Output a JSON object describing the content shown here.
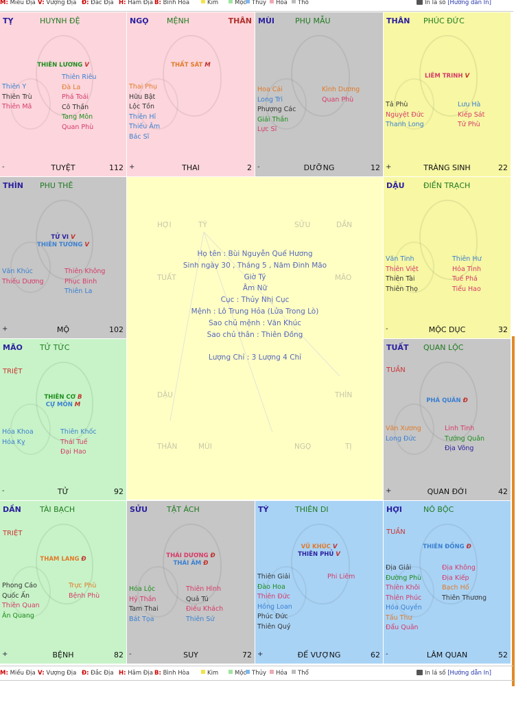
{
  "legend": {
    "items": [
      {
        "key": "M:",
        "label": "Miếu Địa"
      },
      {
        "key": "V:",
        "label": "Vượng Địa"
      },
      {
        "key": "Đ:",
        "label": "Đắc Địa"
      },
      {
        "key": "H:",
        "label": "Hãm Địa"
      },
      {
        "key": "B:",
        "label": "Bình Hòa"
      }
    ],
    "elements": [
      {
        "label": "Kim",
        "color": "#f4e34a"
      },
      {
        "label": "Mộc",
        "color": "#9fe59f"
      },
      {
        "label": "Thủy",
        "color": "#7fb7ea"
      },
      {
        "label": "Hỏa",
        "color": "#f0a9b4"
      },
      {
        "label": "Thổ",
        "color": "#bcbcbc"
      }
    ],
    "print_text": "In lá số",
    "guide_link": "[Hướng dẫn In]"
  },
  "palaces": [
    {
      "id": "ty",
      "branch": "TỴ",
      "palace": "HUYNH ĐỆ",
      "than": "",
      "bg": "#fcd6dc",
      "main": [
        {
          "name": "THIÊN LƯƠNG",
          "q": "V",
          "color": "#1c8c1c"
        }
      ],
      "left": [
        {
          "t": "Thiên Y",
          "c": "#3a7fd0"
        },
        {
          "t": "Thiên Trù",
          "c": "#333333"
        },
        {
          "t": "Thiên Mã",
          "c": "#d63a68"
        }
      ],
      "right": [
        {
          "t": "Thiên Riêu",
          "c": "#3a7fd0"
        },
        {
          "t": "Đà La",
          "c": "#e07a2a"
        },
        {
          "t": "Phá Toái",
          "c": "#d63a68"
        },
        {
          "t": "Cô Thần",
          "c": "#333333"
        },
        {
          "t": "Tang Môn",
          "c": "#1c8c1c"
        },
        {
          "t": "Quan Phù",
          "c": "#d63a68"
        }
      ],
      "tuan": "",
      "sign": "-",
      "stage": "TUYỆT",
      "age": "112"
    },
    {
      "id": "ngo",
      "branch": "NGỌ",
      "palace": "MỆNH",
      "than": "THÂN",
      "bg": "#fcd6dc",
      "main": [
        {
          "name": "THẤT SÁT",
          "q": "M",
          "color": "#e07a2a"
        }
      ],
      "left": [
        {
          "t": "Thai Phụ",
          "c": "#e07a2a"
        },
        {
          "t": "Hữu Bật",
          "c": "#333333"
        },
        {
          "t": "Lộc Tồn",
          "c": "#333333"
        },
        {
          "t": "Thiên Hỉ",
          "c": "#3a7fd0"
        },
        {
          "t": "Thiếu Âm",
          "c": "#3a7fd0"
        },
        {
          "t": "Bác Sĩ",
          "c": "#3a7fd0"
        }
      ],
      "right": [],
      "tuan": "",
      "sign": "+",
      "stage": "THAI",
      "age": "2"
    },
    {
      "id": "mui",
      "branch": "MÙI",
      "palace": "PHỤ MẪU",
      "than": "",
      "bg": "#c6c6c6",
      "main": [],
      "left": [
        {
          "t": "Hoa Cái",
          "c": "#e07a2a"
        },
        {
          "t": "Long Trì",
          "c": "#3a7fd0"
        },
        {
          "t": "Phượng Các",
          "c": "#333333"
        },
        {
          "t": "Giải Thần",
          "c": "#1c8c1c"
        },
        {
          "t": "Lực Sĩ",
          "c": "#d63a68"
        }
      ],
      "right": [
        {
          "t": "Kình Dương",
          "c": "#e07a2a"
        },
        {
          "t": "Quan Phù",
          "c": "#d63a68"
        }
      ],
      "tuan": "",
      "sign": "-",
      "stage": "DƯỠNG",
      "age": "12"
    },
    {
      "id": "than",
      "branch": "THÂN",
      "palace": "PHÚC ĐỨC",
      "than": "",
      "bg": "#f7f7a4",
      "main": [
        {
          "name": "LIÊM TRINH",
          "q": "V",
          "color": "#d63a68"
        }
      ],
      "left": [
        {
          "t": "Tả Phù",
          "c": "#333333"
        },
        {
          "t": "Nguyệt Đức",
          "c": "#d63a68"
        },
        {
          "t": "Thanh Long",
          "c": "#3a7fd0"
        }
      ],
      "right": [
        {
          "t": "Lưu Hà",
          "c": "#3a7fd0"
        },
        {
          "t": "Kiếp Sát",
          "c": "#d63a68"
        },
        {
          "t": "Tử Phù",
          "c": "#d63a68"
        }
      ],
      "tuan": "",
      "sign": "+",
      "stage": "TRÀNG SINH",
      "age": "22"
    },
    {
      "id": "thin",
      "branch": "THÌN",
      "palace": "PHU THÊ",
      "than": "",
      "bg": "#c6c6c6",
      "main": [
        {
          "name": "TỬ VI",
          "q": "V",
          "color": "#2a1f9e"
        },
        {
          "name": "THIÊN TƯỚNG",
          "q": "V",
          "color": "#3a7fd0"
        }
      ],
      "left": [
        {
          "t": "Văn Khúc",
          "c": "#3a7fd0"
        },
        {
          "t": "Thiếu Dương",
          "c": "#d63a68"
        }
      ],
      "right": [
        {
          "t": "Thiên Không",
          "c": "#d63a68"
        },
        {
          "t": "Phục Binh",
          "c": "#d63a68"
        },
        {
          "t": "Thiên La",
          "c": "#3a7fd0"
        }
      ],
      "tuan": "",
      "sign": "+",
      "stage": "MỘ",
      "age": "102"
    },
    {
      "id": "dau",
      "branch": "DẬU",
      "palace": "ĐIỀN TRẠCH",
      "than": "",
      "bg": "#f7f7a4",
      "main": [],
      "left": [
        {
          "t": "Văn Tinh",
          "c": "#3a7fd0"
        },
        {
          "t": "Thiên Việt",
          "c": "#d63a68"
        },
        {
          "t": "Thiên Tài",
          "c": "#333333"
        },
        {
          "t": "Thiên Thọ",
          "c": "#333333"
        }
      ],
      "right": [
        {
          "t": "Thiên Hư",
          "c": "#3a7fd0"
        },
        {
          "t": "Hỏa Tinh",
          "c": "#d63a68"
        },
        {
          "t": "Tuế Phá",
          "c": "#d63a68"
        },
        {
          "t": "Tiểu Hao",
          "c": "#d63a68"
        }
      ],
      "tuan": "",
      "sign": "-",
      "stage": "MỘC DỤC",
      "age": "32"
    },
    {
      "id": "mao",
      "branch": "MÃO",
      "palace": "TỬ TỨC",
      "than": "",
      "bg": "#c8f3c8",
      "main": [
        {
          "name": "THIÊN CƠ",
          "q": "B",
          "color": "#1c8c1c"
        },
        {
          "name": "CỰ MÔN",
          "q": "M",
          "color": "#3a7fd0"
        }
      ],
      "left": [
        {
          "t": "Hóa Khoa",
          "c": "#3a7fd0"
        },
        {
          "t": "Hóa Kỵ",
          "c": "#3a7fd0"
        }
      ],
      "right": [
        {
          "t": "Thiên Khốc",
          "c": "#3a7fd0"
        },
        {
          "t": "Thái Tuế",
          "c": "#d63a68"
        },
        {
          "t": "Đại Hao",
          "c": "#d63a68"
        }
      ],
      "tuan": "TRIỆT",
      "sign": "-",
      "stage": "TỬ",
      "age": "92"
    },
    {
      "id": "tuat",
      "branch": "TUẤT",
      "palace": "QUAN LỘC",
      "than": "",
      "bg": "#c6c6c6",
      "main": [
        {
          "name": "PHÁ QUÂN",
          "q": "Đ",
          "color": "#3a7fd0"
        }
      ],
      "left": [
        {
          "t": "Văn Xương",
          "c": "#e07a2a"
        },
        {
          "t": "Long Đức",
          "c": "#3a7fd0"
        }
      ],
      "right": [
        {
          "t": "Linh Tinh",
          "c": "#d63a68"
        },
        {
          "t": "Tướng Quân",
          "c": "#1c8c1c"
        },
        {
          "t": "Địa Võng",
          "c": "#2a1f9e"
        }
      ],
      "tuan": "TUẦN",
      "sign": "+",
      "stage": "QUAN ĐỚI",
      "age": "42"
    },
    {
      "id": "dan",
      "branch": "DẦN",
      "palace": "TÀI BẠCH",
      "than": "",
      "bg": "#c8f3c8",
      "main": [
        {
          "name": "THAM LANG",
          "q": "Đ",
          "color": "#e07a2a"
        }
      ],
      "left": [
        {
          "t": "Phong Cáo",
          "c": "#333333"
        },
        {
          "t": "Quốc Ấn",
          "c": "#333333"
        },
        {
          "t": "Thiên Quan",
          "c": "#d63a68"
        },
        {
          "t": "Ân Quang",
          "c": "#1c8c1c"
        }
      ],
      "right": [
        {
          "t": "Trực Phù",
          "c": "#e07a2a"
        },
        {
          "t": "Bệnh Phù",
          "c": "#d63a68"
        }
      ],
      "tuan": "TRIỆT",
      "sign": "+",
      "stage": "BỆNH",
      "age": "82"
    },
    {
      "id": "suu",
      "branch": "SỬU",
      "palace": "TẬT ÁCH",
      "than": "",
      "bg": "#c6c6c6",
      "main": [
        {
          "name": "THÁI DƯƠNG",
          "q": "Đ",
          "color": "#d63a68"
        },
        {
          "name": "THÁI ÂM",
          "q": "Đ",
          "color": "#3a7fd0"
        }
      ],
      "left": [
        {
          "t": "Hóa Lộc",
          "c": "#1c8c1c"
        },
        {
          "t": "Hỷ Thần",
          "c": "#d63a68"
        },
        {
          "t": "Tam Thai",
          "c": "#333333"
        },
        {
          "t": "Bát Tọa",
          "c": "#3a7fd0"
        }
      ],
      "right": [
        {
          "t": "Thiên Hình",
          "c": "#d63a68"
        },
        {
          "t": "Quả Tú",
          "c": "#333333"
        },
        {
          "t": "Điếu Khách",
          "c": "#d63a68"
        },
        {
          "t": "Thiên Sứ",
          "c": "#3a7fd0"
        }
      ],
      "tuan": "",
      "sign": "-",
      "stage": "SUY",
      "age": "72"
    },
    {
      "id": "ty2",
      "branch": "TÝ",
      "palace": "THIÊN DI",
      "than": "",
      "bg": "#a9d3f5",
      "main": [
        {
          "name": "VŨ KHÚC",
          "q": "V",
          "color": "#e07a2a"
        },
        {
          "name": "THIÊN PHỦ",
          "q": "V",
          "color": "#2a1f9e"
        }
      ],
      "left": [
        {
          "t": "Thiên Giải",
          "c": "#333333"
        },
        {
          "t": "Đào Hoa",
          "c": "#1c8c1c"
        },
        {
          "t": "Thiên Đức",
          "c": "#d63a68"
        },
        {
          "t": "Hồng Loan",
          "c": "#3a7fd0"
        },
        {
          "t": "Phúc Đức",
          "c": "#333333"
        },
        {
          "t": "Thiên Quý",
          "c": "#333333"
        }
      ],
      "right": [
        {
          "t": "Phi Liêm",
          "c": "#d63a68"
        }
      ],
      "tuan": "",
      "sign": "+",
      "stage": "ĐẾ VƯỢNG",
      "age": "62"
    },
    {
      "id": "hoi",
      "branch": "HỢI",
      "palace": "NÔ BỘC",
      "than": "",
      "bg": "#a9d3f5",
      "main": [
        {
          "name": "THIÊN ĐỒNG",
          "q": "Đ",
          "color": "#3a7fd0"
        }
      ],
      "left": [
        {
          "t": "Địa Giải",
          "c": "#333333"
        },
        {
          "t": "Đường Phù",
          "c": "#1c8c1c"
        },
        {
          "t": "Thiên Khôi",
          "c": "#d63a68"
        },
        {
          "t": "Thiên Phúc",
          "c": "#d63a68"
        },
        {
          "t": "Hóa Quyền",
          "c": "#3a7fd0"
        },
        {
          "t": "Tấu Thư",
          "c": "#e07a2a"
        },
        {
          "t": "Đẩu Quân",
          "c": "#d63a68"
        }
      ],
      "right": [
        {
          "t": "Địa Không",
          "c": "#d63a68"
        },
        {
          "t": "Địa Kiếp",
          "c": "#d63a68"
        },
        {
          "t": "Bạch Hổ",
          "c": "#e07a2a"
        },
        {
          "t": "Thiên Thương",
          "c": "#333333"
        }
      ],
      "tuan": "TUẦN",
      "sign": "-",
      "stage": "LÂM QUAN",
      "age": "52"
    }
  ],
  "center": {
    "info": [
      "Họ tên : Bùi Nguyễn Quế Hương",
      "Sinh ngày 30 , Tháng 5 , Năm Đinh Mão",
      "Giờ Tý",
      "Âm Nữ",
      "Cục : Thủy Nhị Cục",
      "Mệnh : Lô Trung Hỏa (Lửa Trong Lò)",
      "Sao chủ mệnh : Văn Khúc",
      "Sao chủ thân : Thiên Đồng",
      "",
      "Lượng Chỉ : 3 Lượng 4 Chỉ"
    ],
    "silk": [
      "HỢI",
      "TÝ",
      "SỬU",
      "DẦN",
      "TUẤT",
      "MÃO",
      "DẬU",
      "THÌN",
      "THÂN",
      "MÙI",
      "NGỌ",
      "TỊ"
    ]
  }
}
